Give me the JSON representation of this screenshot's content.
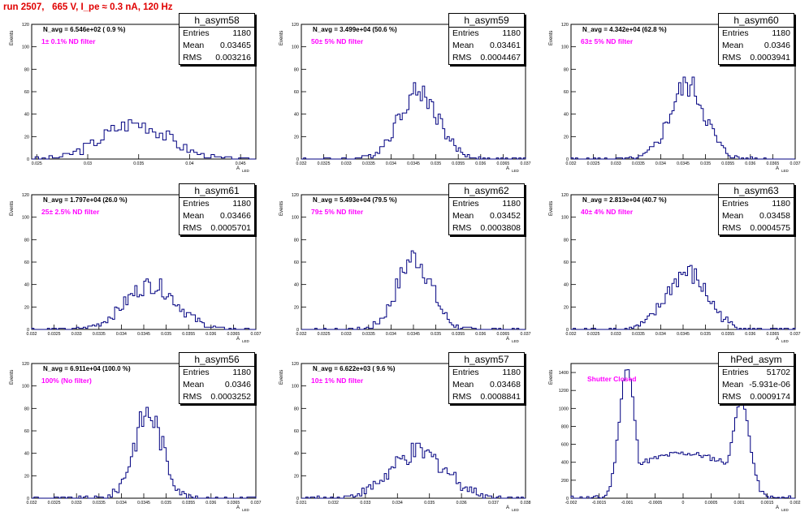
{
  "page": {
    "run_title": "run 2507,   665 V, I_pe ≈ 0.3 nA, 120 Hz",
    "ylabel": "Events",
    "xlabel": "A",
    "xlabel_sub": "LED",
    "stat_labels": {
      "entries": "Entries",
      "mean": "Mean",
      "rms": "RMS"
    },
    "line_color": "#000080",
    "annotation_color": "#ff00ff",
    "title_color": "#e00000"
  },
  "panels": [
    {
      "name": "h_asym58",
      "n_avg": "N_avg = 6.546e+02 ( 0.9 %)",
      "filter": "1± 0.1% ND filter",
      "entries": "1180",
      "mean": "0.03465",
      "rms": "0.003216"
    },
    {
      "name": "h_asym59",
      "n_avg": "N_avg = 3.499e+04 (50.6 %)",
      "filter": "50± 5% ND filter",
      "entries": "1180",
      "mean": "0.03461",
      "rms": "0.0004467"
    },
    {
      "name": "h_asym60",
      "n_avg": "N_avg = 4.342e+04 (62.8 %)",
      "filter": "63± 5% ND filter",
      "entries": "1180",
      "mean": "0.0346",
      "rms": "0.0003941"
    },
    {
      "name": "h_asym61",
      "n_avg": "N_avg = 1.797e+04 (26.0 %)",
      "filter": "25± 2.5% ND filter",
      "entries": "1180",
      "mean": "0.03466",
      "rms": "0.0005701"
    },
    {
      "name": "h_asym62",
      "n_avg": "N_avg = 5.493e+04 (79.5 %)",
      "filter": "79± 5% ND filter",
      "entries": "1180",
      "mean": "0.03452",
      "rms": "0.0003808"
    },
    {
      "name": "h_asym63",
      "n_avg": "N_avg = 2.813e+04 (40.7 %)",
      "filter": "40± 4% ND filter",
      "entries": "1180",
      "mean": "0.03458",
      "rms": "0.0004575"
    },
    {
      "name": "h_asym56",
      "n_avg": "N_avg = 6.911e+04 (100.0 %)",
      "filter": "100% (No filter)",
      "entries": "1180",
      "mean": "0.0346",
      "rms": "0.0003252"
    },
    {
      "name": "h_asym57",
      "n_avg": "N_avg = 6.622e+03 ( 9.6 %)",
      "filter": "10± 1% ND filter",
      "entries": "1180",
      "mean": "0.03468",
      "rms": "0.0008841"
    },
    {
      "name": "hPed_asym",
      "n_avg": "",
      "filter": "Shutter Closed",
      "entries": "51702",
      "mean": "-5.931e-06",
      "rms": "0.0009174"
    }
  ],
  "chart_data": [
    {
      "type": "histogram",
      "title": "h_asym58",
      "xlim": [
        0.0245,
        0.0465
      ],
      "ylim": [
        0,
        120
      ],
      "xticks": [
        0.025,
        0.03,
        0.035,
        0.04,
        0.045
      ],
      "xtick_labels": [
        "0.025",
        "0.03",
        "0.035",
        "0.04",
        "0.045"
      ],
      "yticks": [
        0,
        20,
        40,
        60,
        80,
        100,
        120
      ],
      "mean": 0.03465,
      "rms": 0.003216,
      "peak": 32,
      "noise": 4,
      "bins": 65
    },
    {
      "type": "histogram",
      "title": "h_asym59",
      "xlim": [
        0.032,
        0.037
      ],
      "ylim": [
        0,
        120
      ],
      "xticks": [
        0.032,
        0.0325,
        0.033,
        0.0335,
        0.034,
        0.0345,
        0.035,
        0.0355,
        0.036,
        0.0365,
        0.037
      ],
      "xtick_labels": [
        "0.032",
        "0.0325",
        "0.033",
        "0.0335",
        "0.034",
        "0.0345",
        "0.035",
        "0.0355",
        "0.036",
        "0.0365",
        "0.037"
      ],
      "yticks": [
        0,
        20,
        40,
        60,
        80,
        100,
        120
      ],
      "mean": 0.03461,
      "rms": 0.0004467,
      "peak": 60,
      "noise": 5,
      "bins": 100
    },
    {
      "type": "histogram",
      "title": "h_asym60",
      "xlim": [
        0.032,
        0.037
      ],
      "ylim": [
        0,
        120
      ],
      "xticks": [
        0.032,
        0.0325,
        0.033,
        0.0335,
        0.034,
        0.0345,
        0.035,
        0.0355,
        0.036,
        0.0365,
        0.037
      ],
      "xtick_labels": [
        "0.032",
        "0.0325",
        "0.033",
        "0.0335",
        "0.034",
        "0.0345",
        "0.035",
        "0.0355",
        "0.036",
        "0.0365",
        "0.037"
      ],
      "yticks": [
        0,
        20,
        40,
        60,
        80,
        100,
        120
      ],
      "mean": 0.0346,
      "rms": 0.0003941,
      "peak": 66,
      "noise": 6,
      "bins": 100
    },
    {
      "type": "histogram",
      "title": "h_asym61",
      "xlim": [
        0.032,
        0.037
      ],
      "ylim": [
        0,
        120
      ],
      "xticks": [
        0.032,
        0.0325,
        0.033,
        0.0335,
        0.034,
        0.0345,
        0.035,
        0.0355,
        0.036,
        0.0365,
        0.037
      ],
      "xtick_labels": [
        "0.032",
        "0.0325",
        "0.033",
        "0.0335",
        "0.034",
        "0.0345",
        "0.035",
        "0.0355",
        "0.036",
        "0.0365",
        "0.037"
      ],
      "yticks": [
        0,
        20,
        40,
        60,
        80,
        100,
        120
      ],
      "mean": 0.03466,
      "rms": 0.0005701,
      "peak": 40,
      "noise": 4,
      "bins": 100
    },
    {
      "type": "histogram",
      "title": "h_asym62",
      "xlim": [
        0.032,
        0.037
      ],
      "ylim": [
        0,
        120
      ],
      "xticks": [
        0.032,
        0.0325,
        0.033,
        0.0335,
        0.034,
        0.0345,
        0.035,
        0.0355,
        0.036,
        0.0365,
        0.037
      ],
      "xtick_labels": [
        "0.032",
        "0.0325",
        "0.033",
        "0.0335",
        "0.034",
        "0.0345",
        "0.035",
        "0.0355",
        "0.036",
        "0.0365",
        "0.037"
      ],
      "yticks": [
        0,
        20,
        40,
        60,
        80,
        100,
        120
      ],
      "mean": 0.03452,
      "rms": 0.0003808,
      "peak": 64,
      "noise": 6,
      "bins": 100
    },
    {
      "type": "histogram",
      "title": "h_asym63",
      "xlim": [
        0.032,
        0.037
      ],
      "ylim": [
        0,
        120
      ],
      "xticks": [
        0.032,
        0.0325,
        0.033,
        0.0335,
        0.034,
        0.0345,
        0.035,
        0.0355,
        0.036,
        0.0365,
        0.037
      ],
      "xtick_labels": [
        "0.032",
        "0.0325",
        "0.033",
        "0.0335",
        "0.034",
        "0.0345",
        "0.035",
        "0.0355",
        "0.036",
        "0.0365",
        "0.037"
      ],
      "yticks": [
        0,
        20,
        40,
        60,
        80,
        100,
        120
      ],
      "mean": 0.03458,
      "rms": 0.0004575,
      "peak": 50,
      "noise": 5,
      "bins": 100
    },
    {
      "type": "histogram",
      "title": "h_asym56",
      "xlim": [
        0.032,
        0.037
      ],
      "ylim": [
        0,
        120
      ],
      "xticks": [
        0.032,
        0.0325,
        0.033,
        0.0335,
        0.034,
        0.0345,
        0.035,
        0.0355,
        0.036,
        0.0365,
        0.037
      ],
      "xtick_labels": [
        "0.032",
        "0.0325",
        "0.033",
        "0.0335",
        "0.034",
        "0.0345",
        "0.035",
        "0.0355",
        "0.036",
        "0.0365",
        "0.037"
      ],
      "yticks": [
        0,
        20,
        40,
        60,
        80,
        100,
        120
      ],
      "mean": 0.0346,
      "rms": 0.0003252,
      "peak": 76,
      "noise": 7,
      "bins": 100
    },
    {
      "type": "histogram",
      "title": "h_asym57",
      "xlim": [
        0.031,
        0.038
      ],
      "ylim": [
        0,
        120
      ],
      "xticks": [
        0.031,
        0.032,
        0.033,
        0.034,
        0.035,
        0.036,
        0.037,
        0.038
      ],
      "xtick_labels": [
        "0.031",
        "0.032",
        "0.033",
        "0.034",
        "0.035",
        "0.036",
        "0.037",
        "0.038"
      ],
      "yticks": [
        0,
        20,
        40,
        60,
        80,
        100,
        120
      ],
      "mean": 0.03468,
      "rms": 0.0008841,
      "peak": 40,
      "noise": 5,
      "bins": 100
    },
    {
      "type": "histogram",
      "title": "hPed_asym",
      "xlim": [
        -0.002,
        0.002
      ],
      "ylim": [
        0,
        1500
      ],
      "xticks": [
        -0.002,
        -0.0015,
        -0.001,
        -0.0005,
        0,
        0.0005,
        0.001,
        0.0015,
        0.002
      ],
      "xtick_labels": [
        "-0.002",
        "-0.0015",
        "-0.001",
        "-0.0005",
        "0",
        "0.0005",
        "0.001",
        "0.0015",
        "0.002"
      ],
      "yticks": [
        0,
        200,
        400,
        600,
        800,
        1000,
        1200,
        1400
      ],
      "mean": -5.931e-06,
      "rms": 0.0009174,
      "shape": "bimodal",
      "peaks": [
        {
          "x": -0.001,
          "y": 1440,
          "w": 0.00014
        },
        {
          "x": 0.00103,
          "y": 1080,
          "w": 0.00016
        }
      ],
      "plateau": 440,
      "bins": 100
    }
  ]
}
